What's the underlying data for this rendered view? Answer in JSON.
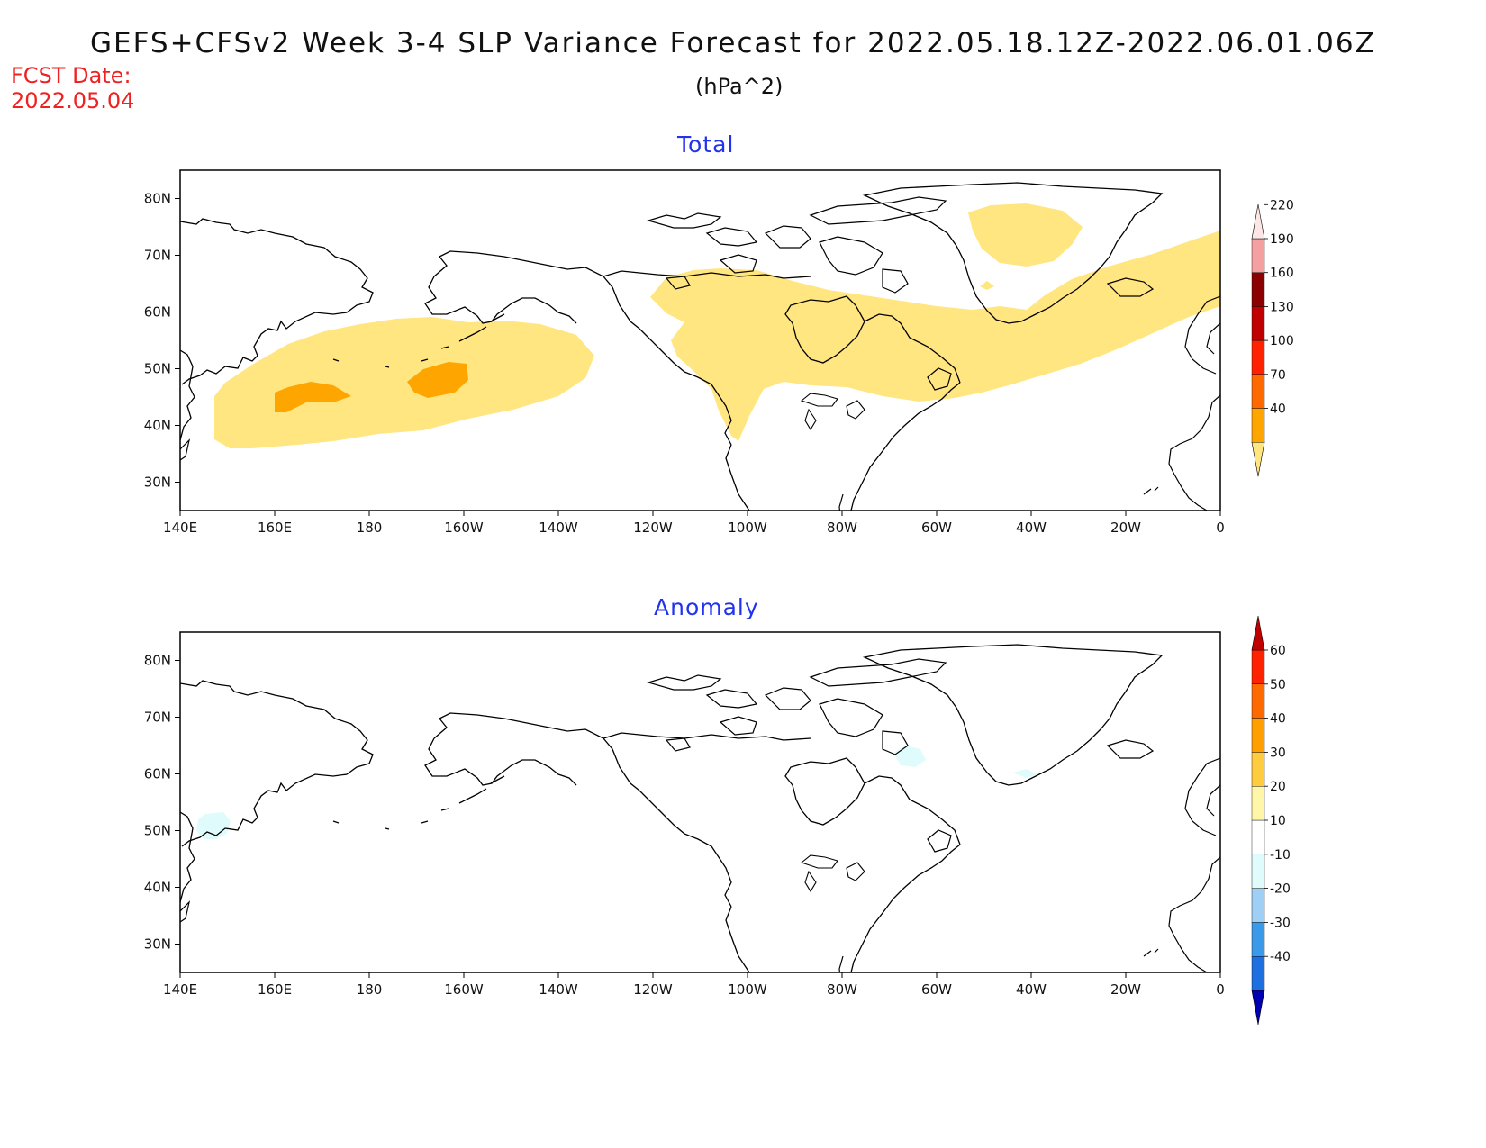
{
  "header": {
    "title": "GEFS+CFSv2 Week 3-4 SLP Variance Forecast for 2022.05.18.12Z-2022.06.01.06Z",
    "units": "(hPa^2)",
    "fcst_label": "FCST Date:",
    "fcst_date": "2022.05.04"
  },
  "panels": {
    "total": {
      "title": "Total"
    },
    "anomaly": {
      "title": "Anomaly"
    }
  },
  "axes": {
    "lon_labels": [
      "140E",
      "160E",
      "180",
      "160W",
      "140W",
      "120W",
      "100W",
      "80W",
      "60W",
      "40W",
      "20W",
      "0"
    ],
    "lat_labels": [
      "30N",
      "40N",
      "50N",
      "60N",
      "70N",
      "80N"
    ]
  },
  "colorbars": {
    "total": {
      "labels": [
        "40",
        "70",
        "100",
        "130",
        "160",
        "190",
        "220"
      ],
      "colors": [
        "#ffe680",
        "#ffa500",
        "#ff6a00",
        "#ff2200",
        "#c00000",
        "#8b0000",
        "#f4a0a0",
        "#fde6e6"
      ]
    },
    "anomaly": {
      "labels": [
        "-40",
        "-30",
        "-20",
        "-10",
        "10",
        "20",
        "30",
        "40",
        "50",
        "60"
      ],
      "colors": [
        "#0000b0",
        "#1e6fe0",
        "#3a9ae8",
        "#a0cff5",
        "#e0fbfb",
        "#ffffff",
        "#fff6a8",
        "#ffcc40",
        "#ffa000",
        "#ff6a00",
        "#ff2200",
        "#c00000"
      ]
    }
  }
}
